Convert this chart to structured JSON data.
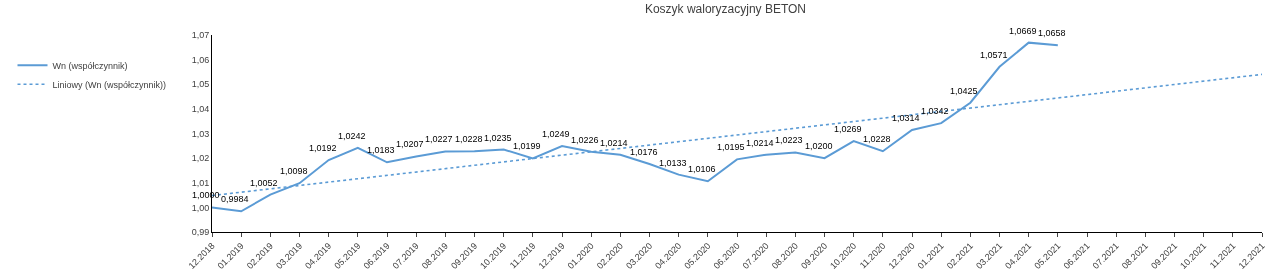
{
  "chart_data": {
    "type": "line",
    "title": "Koszyk waloryzacyjny BETON",
    "categories": [
      "12.2018",
      "01.2019",
      "02.2019",
      "03.2019",
      "04.2019",
      "05.2019",
      "06.2019",
      "07.2019",
      "08.2019",
      "09.2019",
      "10.2019",
      "11.2019",
      "12.2019",
      "01.2020",
      "02.2020",
      "03.2020",
      "04.2020",
      "05.2020",
      "06.2020",
      "07.2020",
      "08.2020",
      "09.2020",
      "10.2020",
      "11.2020",
      "12.2020",
      "01.2021",
      "02.2021",
      "03.2021",
      "04.2021",
      "05.2021",
      "06.2021",
      "07.2021",
      "08.2021",
      "09.2021",
      "10.2021",
      "11.2021",
      "12.2021"
    ],
    "series": [
      {
        "name": "Wn (współczynnik)",
        "color": "#5b9bd5",
        "line_style": "solid",
        "values": [
          1.0,
          0.9984,
          1.0052,
          1.0098,
          1.0192,
          1.0242,
          1.0183,
          1.0207,
          1.0227,
          1.0228,
          1.0235,
          1.0199,
          1.0249,
          1.0226,
          1.0214,
          1.0176,
          1.0133,
          1.0106,
          1.0195,
          1.0214,
          1.0223,
          1.02,
          1.0269,
          1.0228,
          1.0314,
          1.0342,
          1.0425,
          1.0571,
          1.0669,
          1.0658,
          null,
          null,
          null,
          null,
          null,
          null,
          null
        ],
        "value_labels": [
          "1,0000",
          "0,9984",
          "1,0052",
          "1,0098",
          "1,0192",
          "1,0242",
          "1,0183",
          "1,0207",
          "1,0227",
          "1,0228",
          "1,0235",
          "1,0199",
          "1,0249",
          "1,0226",
          "1,0214",
          "1,0176",
          "1,0133",
          "1,0106",
          "1,0195",
          "1,0214",
          "1,0223",
          "1,0200",
          "1,0269",
          "1,0228",
          "1,0314",
          "1,0342",
          "1,0425",
          "1,0571",
          "1,0669",
          "1,0658",
          null,
          null,
          null,
          null,
          null,
          null,
          null
        ]
      },
      {
        "name": "Liniowy (Wn (współczynnik))",
        "color": "#5b9bd5",
        "line_style": "dotted",
        "x": [
          "12.2018",
          "12.2021"
        ],
        "values": [
          1.0048,
          1.054
        ]
      }
    ],
    "ylim": [
      0.99,
      1.07
    ],
    "yticks": [
      {
        "value": 0.99,
        "label": "0,99"
      },
      {
        "value": 1.0,
        "label": "1,00"
      },
      {
        "value": 1.01,
        "label": "1,01"
      },
      {
        "value": 1.02,
        "label": "1,02"
      },
      {
        "value": 1.03,
        "label": "1,03"
      },
      {
        "value": 1.04,
        "label": "1,04"
      },
      {
        "value": 1.05,
        "label": "1,05"
      },
      {
        "value": 1.06,
        "label": "1,06"
      },
      {
        "value": 1.07,
        "label": "1,07"
      }
    ],
    "grid": false,
    "legend": "left",
    "marker": "none"
  }
}
